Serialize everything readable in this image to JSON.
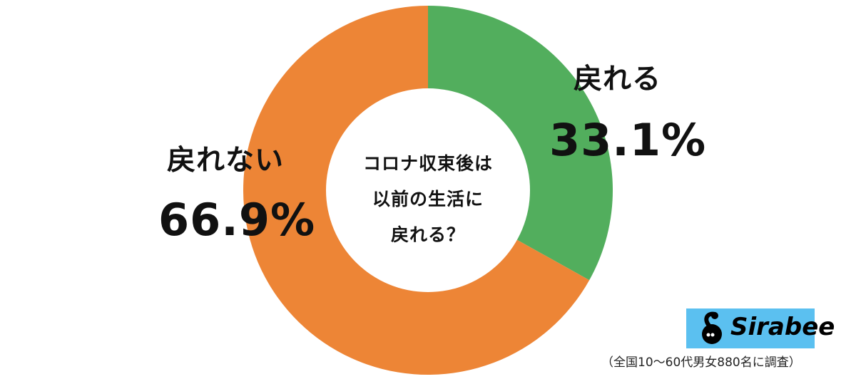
{
  "chart_data": {
    "type": "pie",
    "variant": "donut",
    "title": "コロナ収束後は以前の生活に戻れる？",
    "categories": [
      "戻れる",
      "戻れない"
    ],
    "values": [
      33.1,
      66.9
    ],
    "unit": "%",
    "colors": [
      "#52AE5D",
      "#ED8536"
    ],
    "start_angle_deg": 0,
    "direction": "clockwise",
    "legend": "none (direct labels)"
  },
  "center": {
    "lines": [
      "コロナ収束後は",
      "以前の生活に",
      "戻れる？"
    ]
  },
  "labels": {
    "yes": {
      "name": "戻れる",
      "value": "33.1%"
    },
    "no": {
      "name": "戻れない",
      "value": "66.9%"
    }
  },
  "brand": {
    "name": "Sirabee",
    "background": "#5BC0F0"
  },
  "footnote": "（全国10〜60代男女880名に調査）"
}
